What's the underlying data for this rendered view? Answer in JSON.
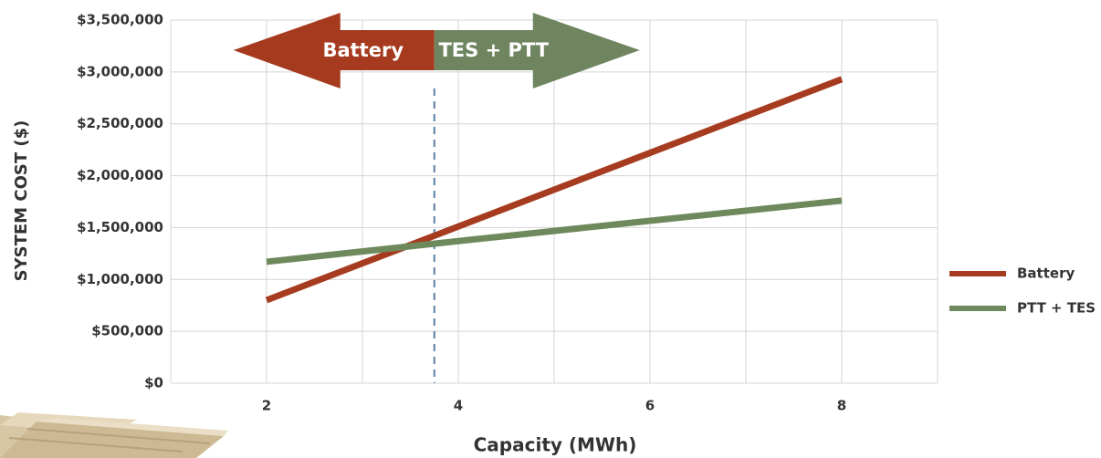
{
  "chart_data": {
    "type": "line",
    "x_label": "Capacity (MWh)",
    "y_label": "SYSTEM COST ($)",
    "xlim": [
      1,
      9
    ],
    "xticks": [
      2,
      4,
      6,
      8
    ],
    "x_minor_ticks": [
      3,
      5,
      7
    ],
    "ylim": [
      0,
      3500000
    ],
    "yticks": [
      {
        "value": 0,
        "label": "$0"
      },
      {
        "value": 500000,
        "label": "$500,000"
      },
      {
        "value": 1000000,
        "label": "$1,000,000"
      },
      {
        "value": 1500000,
        "label": "$1,500,000"
      },
      {
        "value": 2000000,
        "label": "$2,000,000"
      },
      {
        "value": 2500000,
        "label": "$2,500,000"
      },
      {
        "value": 3000000,
        "label": "$3,000,000"
      },
      {
        "value": 3500000,
        "label": "$3,500,000"
      }
    ],
    "grid": true,
    "legend": "right",
    "x": [
      2,
      4,
      6,
      8
    ],
    "series": [
      {
        "name": "Battery",
        "color": "#a63b1f",
        "values": [
          800000,
          1510000,
          2220000,
          2930000
        ]
      },
      {
        "name": "PTT + TES",
        "color": "#6e8a5c",
        "values": [
          1170000,
          1370000,
          1565000,
          1760000
        ]
      }
    ],
    "annotations": {
      "threshold_x": 3.75,
      "left_label": "Battery",
      "left_color": "#a63a1e",
      "right_label": "TES + PTT",
      "right_color": "#6f8560"
    }
  }
}
